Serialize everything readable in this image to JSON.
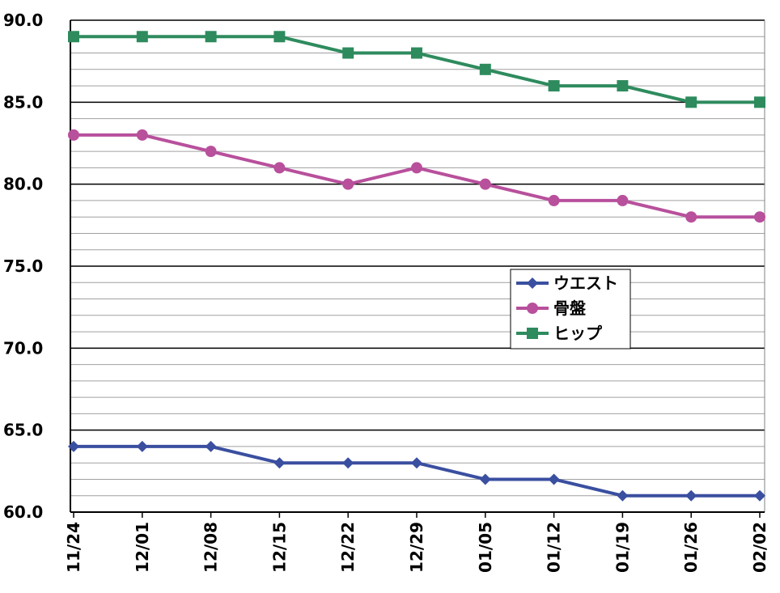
{
  "chart_data": {
    "type": "line",
    "categories": [
      "11/24",
      "12/01",
      "12/08",
      "12/15",
      "12/22",
      "12/29",
      "01/05",
      "01/12",
      "01/19",
      "01/26",
      "02/02"
    ],
    "series": [
      {
        "name": "ウエスト",
        "marker": "diamond",
        "color": "#3a4fa0",
        "values": [
          64,
          64,
          64,
          63,
          63,
          63,
          62,
          62,
          61,
          61,
          61
        ]
      },
      {
        "name": "骨盤",
        "marker": "circle",
        "color": "#b8509c",
        "values": [
          83,
          83,
          82,
          81,
          80,
          81,
          80,
          79,
          79,
          78,
          78
        ]
      },
      {
        "name": "ヒップ",
        "marker": "square",
        "color": "#2e8b5e",
        "values": [
          89,
          89,
          89,
          89,
          88,
          88,
          87,
          86,
          86,
          85,
          85
        ]
      }
    ],
    "ylim": [
      60,
      90
    ],
    "yticks": [
      "60.0",
      "65.0",
      "70.0",
      "75.0",
      "80.0",
      "85.0",
      "90.0"
    ],
    "minor_grid_step": 1,
    "major_grid_step": 5,
    "grid": true,
    "legend": "center-right",
    "title": "",
    "xlabel": "",
    "ylabel": ""
  }
}
